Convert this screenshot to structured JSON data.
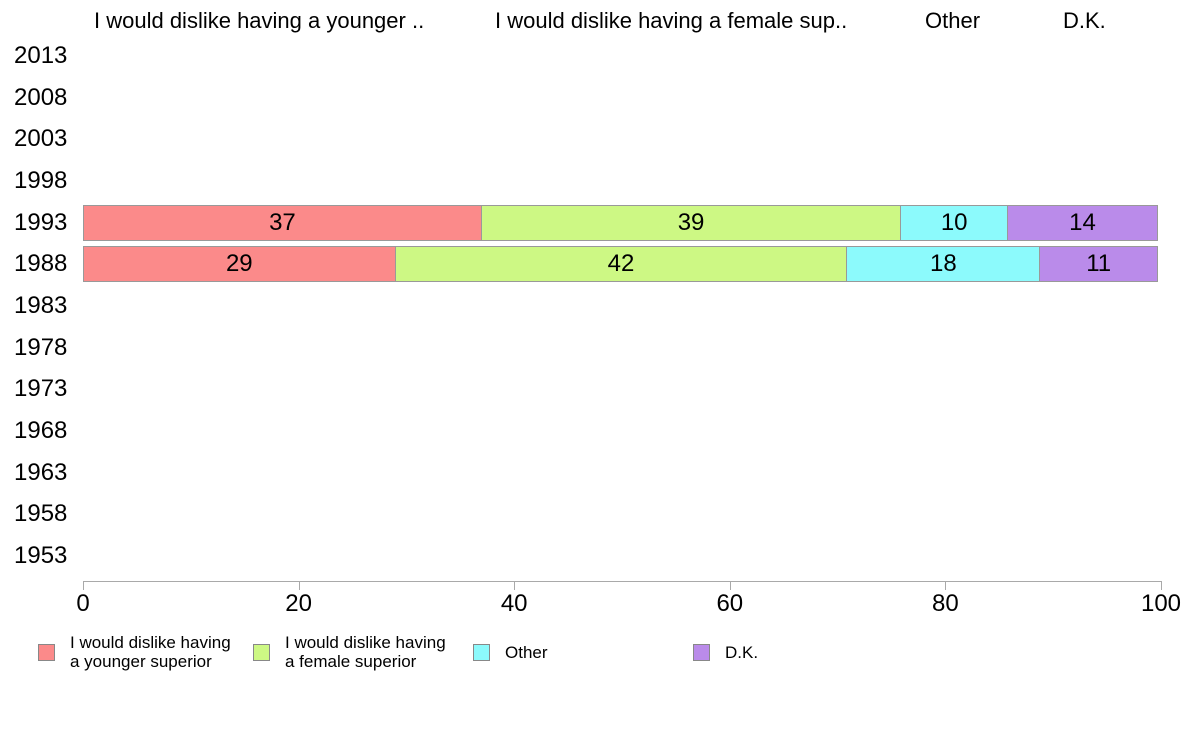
{
  "chart_data": {
    "type": "bar",
    "orientation": "horizontal",
    "stacked": true,
    "title": "",
    "xlabel": "",
    "ylabel": "",
    "categories": [
      "2013",
      "2008",
      "2003",
      "1998",
      "1993",
      "1988",
      "1983",
      "1978",
      "1973",
      "1968",
      "1963",
      "1958",
      "1953"
    ],
    "series": [
      {
        "name": "I would dislike having a younger superior",
        "color": "#fb8a8a",
        "values": [
          null,
          null,
          null,
          null,
          37,
          29,
          null,
          null,
          null,
          null,
          null,
          null,
          null
        ]
      },
      {
        "name": "I would dislike having a female superior",
        "color": "#cdf884",
        "values": [
          null,
          null,
          null,
          null,
          39,
          42,
          null,
          null,
          null,
          null,
          null,
          null,
          null
        ]
      },
      {
        "name": "Other",
        "color": "#8cfafc",
        "values": [
          null,
          null,
          null,
          null,
          10,
          18,
          null,
          null,
          null,
          null,
          null,
          null,
          null
        ]
      },
      {
        "name": "D.K.",
        "color": "#ba8bea",
        "values": [
          null,
          null,
          null,
          null,
          14,
          11,
          null,
          null,
          null,
          null,
          null,
          null,
          null
        ]
      }
    ],
    "xlim": [
      0,
      100
    ],
    "xticks": [
      0,
      20,
      40,
      60,
      80,
      100
    ],
    "grid": false,
    "legend_position": "bottom",
    "bar_value_labels_shown": true
  },
  "column_headers": [
    "I would dislike having a younger ..",
    "I would dislike having a female sup..",
    "Other",
    "D.K."
  ],
  "legend": [
    {
      "label": "I would dislike having\na younger superior",
      "color": "#fb8a8a"
    },
    {
      "label": "I would dislike having\na female superior",
      "color": "#cdf884"
    },
    {
      "label": "Other",
      "color": "#8cfafc"
    },
    {
      "label": "D.K.",
      "color": "#ba8bea"
    }
  ],
  "colors": {
    "segment_border": "#999999",
    "axis": "#a9a9a9",
    "text": "#000000",
    "background": "#ffffff"
  }
}
